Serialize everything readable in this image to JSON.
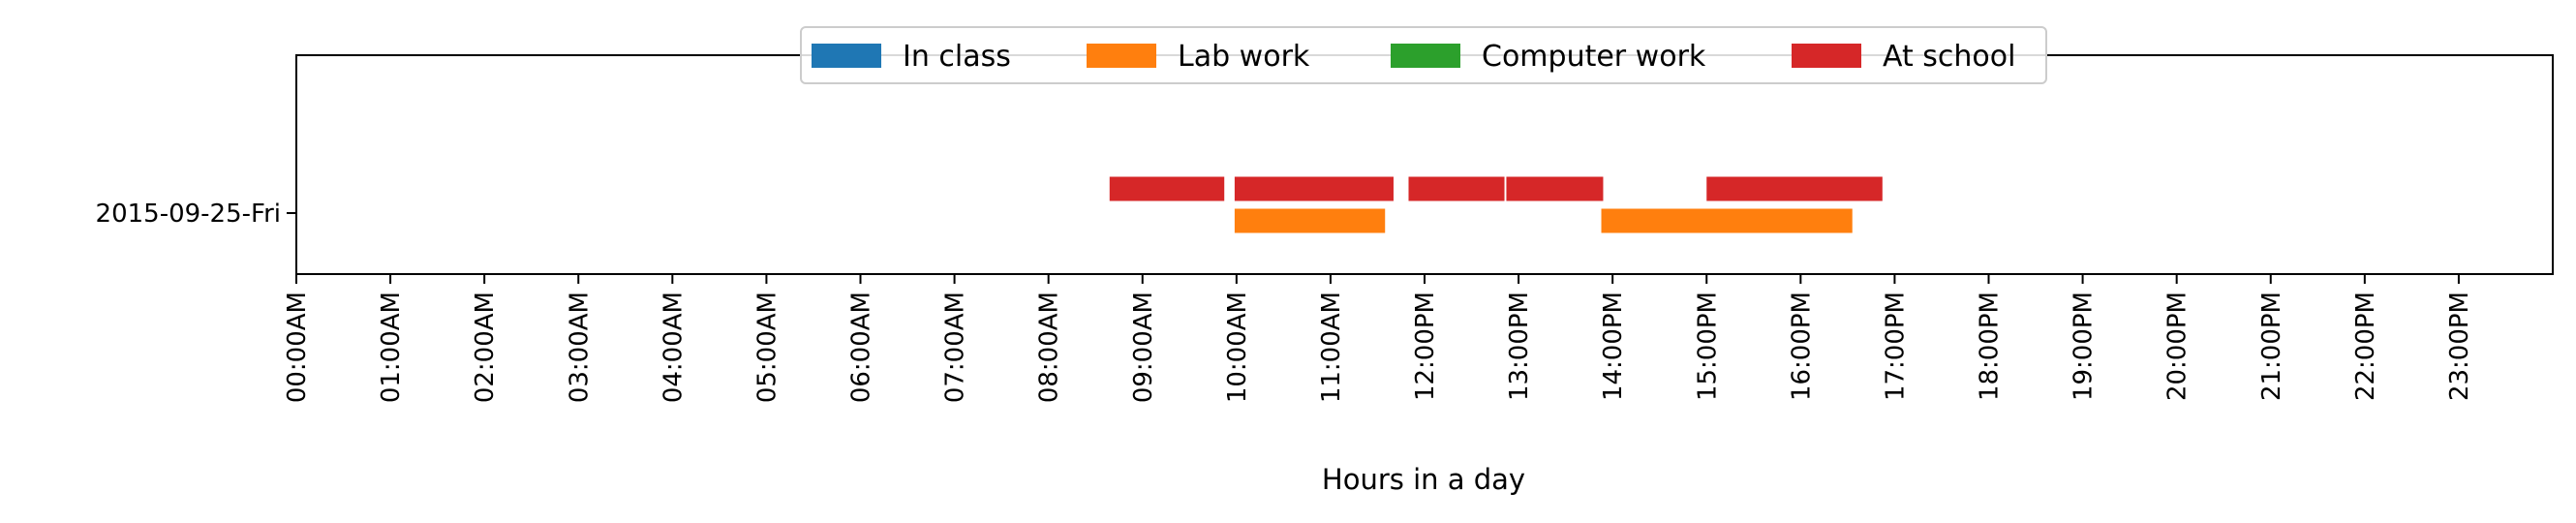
{
  "chart_data": {
    "type": "timeline",
    "title": "",
    "xlabel": "Hours in a day",
    "ylabel": "",
    "xlim": [
      0,
      24
    ],
    "x_ticks": [
      0,
      1,
      2,
      3,
      4,
      5,
      6,
      7,
      8,
      9,
      10,
      11,
      12,
      13,
      14,
      15,
      16,
      17,
      18,
      19,
      20,
      21,
      22,
      23
    ],
    "x_tick_labels": [
      "00:00AM",
      "01:00AM",
      "02:00AM",
      "03:00AM",
      "04:00AM",
      "05:00AM",
      "06:00AM",
      "07:00AM",
      "08:00AM",
      "09:00AM",
      "10:00AM",
      "11:00AM",
      "12:00PM",
      "13:00PM",
      "14:00PM",
      "15:00PM",
      "16:00PM",
      "17:00PM",
      "18:00PM",
      "19:00PM",
      "20:00PM",
      "21:00PM",
      "22:00PM",
      "23:00PM"
    ],
    "categories": [
      "2015-09-25-Fri"
    ],
    "grid": false,
    "legend_position": "top-center",
    "series": [
      {
        "name": "In class",
        "color": "#1f77b4",
        "intervals": []
      },
      {
        "name": "Lab work",
        "color": "#ff7f0e",
        "intervals": [
          {
            "category": "2015-09-25-Fri",
            "start": 9.98,
            "end": 11.58
          },
          {
            "category": "2015-09-25-Fri",
            "start": 13.88,
            "end": 16.55
          }
        ]
      },
      {
        "name": "Computer work",
        "color": "#2ca02c",
        "intervals": []
      },
      {
        "name": "At school",
        "color": "#d62728",
        "intervals": [
          {
            "category": "2015-09-25-Fri",
            "start": 8.65,
            "end": 9.87
          },
          {
            "category": "2015-09-25-Fri",
            "start": 9.98,
            "end": 11.67
          },
          {
            "category": "2015-09-25-Fri",
            "start": 11.83,
            "end": 12.85
          },
          {
            "category": "2015-09-25-Fri",
            "start": 12.87,
            "end": 13.9
          },
          {
            "category": "2015-09-25-Fri",
            "start": 15.0,
            "end": 16.87
          }
        ]
      }
    ]
  }
}
